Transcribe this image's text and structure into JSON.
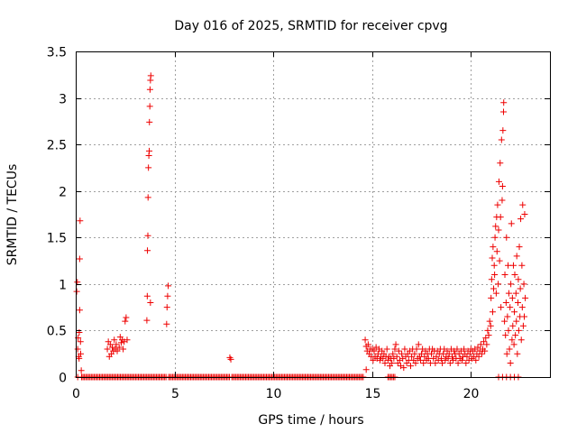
{
  "chart_data": {
    "type": "scatter",
    "title": "Day 016 of 2025, SRMTID for receiver cpvg",
    "xlabel": "GPS time / hours",
    "ylabel": "SRMTID / TECUs",
    "xlim": [
      0,
      24
    ],
    "ylim": [
      0,
      3.5
    ],
    "xticks": [
      0,
      5,
      10,
      15,
      20
    ],
    "xtick_labels": [
      "0",
      "5",
      "10",
      "15",
      "20"
    ],
    "yticks": [
      0,
      0.5,
      1,
      1.5,
      2,
      2.5,
      3,
      3.5
    ],
    "ytick_labels": [
      "0",
      "0.5",
      "1",
      "1.5",
      "2",
      "2.5",
      "3",
      "3.5"
    ],
    "grid": true,
    "marker": "+",
    "color": "#ee0000",
    "series": [
      {
        "name": "SRMTID",
        "points": [
          [
            0.05,
            0.92
          ],
          [
            0.08,
            1.02
          ],
          [
            0.1,
            0.3
          ],
          [
            0.12,
            0.42
          ],
          [
            0.15,
            0.22
          ],
          [
            0.17,
            0.2
          ],
          [
            0.18,
            0.48
          ],
          [
            0.2,
            0.72
          ],
          [
            0.2,
            1.27
          ],
          [
            0.22,
            1.68
          ],
          [
            0.24,
            0.38
          ],
          [
            0.25,
            0.25
          ],
          [
            0.28,
            0.07
          ],
          [
            0.1,
            0.0
          ],
          [
            0.3,
            0.0
          ],
          [
            1.6,
            0.3
          ],
          [
            1.65,
            0.38
          ],
          [
            1.7,
            0.22
          ],
          [
            1.75,
            0.35
          ],
          [
            1.8,
            0.25
          ],
          [
            1.85,
            0.32
          ],
          [
            1.9,
            0.28
          ],
          [
            1.95,
            0.4
          ],
          [
            2.0,
            0.3
          ],
          [
            2.05,
            0.35
          ],
          [
            2.1,
            0.28
          ],
          [
            2.2,
            0.32
          ],
          [
            2.25,
            0.43
          ],
          [
            2.3,
            0.37
          ],
          [
            2.35,
            0.4
          ],
          [
            2.4,
            0.3
          ],
          [
            2.45,
            0.38
          ],
          [
            2.5,
            0.6
          ],
          [
            2.55,
            0.64
          ],
          [
            2.6,
            0.4
          ],
          [
            3.6,
            0.61
          ],
          [
            3.62,
            0.87
          ],
          [
            3.63,
            1.36
          ],
          [
            3.65,
            1.52
          ],
          [
            3.66,
            1.93
          ],
          [
            3.68,
            2.25
          ],
          [
            3.7,
            2.38
          ],
          [
            3.72,
            2.43
          ],
          [
            3.73,
            2.74
          ],
          [
            3.75,
            2.91
          ],
          [
            3.76,
            3.09
          ],
          [
            3.78,
            3.19
          ],
          [
            3.8,
            3.24
          ],
          [
            3.78,
            0.8
          ],
          [
            4.6,
            0.57
          ],
          [
            4.62,
            0.75
          ],
          [
            4.65,
            0.87
          ],
          [
            4.68,
            0.98
          ],
          [
            7.8,
            0.21
          ],
          [
            7.85,
            0.19
          ],
          [
            14.7,
            0.08
          ],
          [
            14.65,
            0.4
          ],
          [
            14.7,
            0.33
          ],
          [
            14.75,
            0.28
          ],
          [
            14.8,
            0.35
          ],
          [
            14.85,
            0.25
          ],
          [
            14.9,
            0.3
          ],
          [
            14.95,
            0.22
          ],
          [
            15.0,
            0.3
          ],
          [
            15.05,
            0.18
          ],
          [
            15.1,
            0.28
          ],
          [
            15.15,
            0.22
          ],
          [
            15.2,
            0.32
          ],
          [
            15.25,
            0.2
          ],
          [
            15.3,
            0.25
          ],
          [
            15.35,
            0.3
          ],
          [
            15.4,
            0.18
          ],
          [
            15.45,
            0.22
          ],
          [
            15.5,
            0.28
          ],
          [
            15.55,
            0.2
          ],
          [
            15.6,
            0.25
          ],
          [
            15.65,
            0.15
          ],
          [
            15.7,
            0.22
          ],
          [
            15.75,
            0.3
          ],
          [
            15.8,
            0.18
          ],
          [
            15.85,
            0.22
          ],
          [
            15.9,
            0.12
          ],
          [
            15.95,
            0.2
          ],
          [
            16.0,
            0.15
          ],
          [
            16.05,
            0.25
          ],
          [
            16.1,
            0.2
          ],
          [
            16.15,
            0.3
          ],
          [
            16.2,
            0.35
          ],
          [
            16.25,
            0.22
          ],
          [
            16.3,
            0.15
          ],
          [
            16.35,
            0.28
          ],
          [
            16.4,
            0.18
          ],
          [
            16.45,
            0.12
          ],
          [
            16.5,
            0.25
          ],
          [
            16.55,
            0.2
          ],
          [
            16.6,
            0.1
          ],
          [
            16.65,
            0.3
          ],
          [
            16.7,
            0.22
          ],
          [
            16.75,
            0.15
          ],
          [
            16.8,
            0.25
          ],
          [
            16.85,
            0.18
          ],
          [
            16.9,
            0.28
          ],
          [
            16.95,
            0.12
          ],
          [
            17.0,
            0.22
          ],
          [
            17.05,
            0.3
          ],
          [
            17.1,
            0.18
          ],
          [
            17.15,
            0.25
          ],
          [
            17.2,
            0.15
          ],
          [
            17.25,
            0.3
          ],
          [
            17.3,
            0.2
          ],
          [
            17.35,
            0.35
          ],
          [
            17.4,
            0.22
          ],
          [
            17.45,
            0.18
          ],
          [
            17.5,
            0.25
          ],
          [
            17.55,
            0.3
          ],
          [
            17.6,
            0.15
          ],
          [
            17.65,
            0.22
          ],
          [
            17.7,
            0.28
          ],
          [
            17.75,
            0.18
          ],
          [
            17.8,
            0.25
          ],
          [
            17.85,
            0.2
          ],
          [
            17.9,
            0.3
          ],
          [
            17.95,
            0.15
          ],
          [
            18.0,
            0.25
          ],
          [
            18.05,
            0.3
          ],
          [
            18.1,
            0.2
          ],
          [
            18.15,
            0.28
          ],
          [
            18.2,
            0.15
          ],
          [
            18.25,
            0.22
          ],
          [
            18.3,
            0.28
          ],
          [
            18.35,
            0.18
          ],
          [
            18.4,
            0.25
          ],
          [
            18.45,
            0.3
          ],
          [
            18.5,
            0.2
          ],
          [
            18.55,
            0.15
          ],
          [
            18.6,
            0.25
          ],
          [
            18.65,
            0.3
          ],
          [
            18.7,
            0.18
          ],
          [
            18.75,
            0.22
          ],
          [
            18.8,
            0.28
          ],
          [
            18.85,
            0.2
          ],
          [
            18.9,
            0.25
          ],
          [
            18.95,
            0.15
          ],
          [
            19.0,
            0.3
          ],
          [
            19.05,
            0.22
          ],
          [
            19.1,
            0.18
          ],
          [
            19.15,
            0.28
          ],
          [
            19.2,
            0.25
          ],
          [
            19.25,
            0.2
          ],
          [
            19.3,
            0.3
          ],
          [
            19.35,
            0.15
          ],
          [
            19.4,
            0.25
          ],
          [
            19.45,
            0.2
          ],
          [
            19.5,
            0.28
          ],
          [
            19.55,
            0.18
          ],
          [
            19.6,
            0.22
          ],
          [
            19.65,
            0.3
          ],
          [
            19.7,
            0.25
          ],
          [
            19.75,
            0.15
          ],
          [
            19.8,
            0.22
          ],
          [
            19.85,
            0.28
          ],
          [
            19.9,
            0.18
          ],
          [
            19.95,
            0.25
          ],
          [
            20.0,
            0.3
          ],
          [
            20.05,
            0.2
          ],
          [
            20.1,
            0.28
          ],
          [
            20.15,
            0.22
          ],
          [
            20.2,
            0.3
          ],
          [
            20.25,
            0.18
          ],
          [
            20.3,
            0.25
          ],
          [
            20.35,
            0.32
          ],
          [
            20.4,
            0.22
          ],
          [
            20.45,
            0.28
          ],
          [
            20.5,
            0.35
          ],
          [
            20.55,
            0.25
          ],
          [
            20.6,
            0.3
          ],
          [
            20.65,
            0.38
          ],
          [
            20.7,
            0.28
          ],
          [
            20.75,
            0.42
          ],
          [
            20.8,
            0.35
          ],
          [
            20.85,
            0.5
          ],
          [
            20.9,
            0.45
          ],
          [
            20.95,
            0.6
          ],
          [
            21.0,
            0.55
          ],
          [
            21.02,
            0.85
          ],
          [
            21.05,
            1.05
          ],
          [
            21.08,
            1.28
          ],
          [
            21.1,
            0.7
          ],
          [
            21.12,
            1.4
          ],
          [
            21.15,
            0.95
          ],
          [
            21.18,
            1.2
          ],
          [
            21.2,
            1.1
          ],
          [
            21.22,
            1.5
          ],
          [
            21.25,
            1.62
          ],
          [
            21.28,
            0.9
          ],
          [
            21.3,
            1.72
          ],
          [
            21.32,
            1.35
          ],
          [
            21.35,
            1.85
          ],
          [
            21.38,
            1.0
          ],
          [
            21.4,
            1.58
          ],
          [
            21.42,
            2.1
          ],
          [
            21.45,
            1.25
          ],
          [
            21.48,
            2.3
          ],
          [
            21.5,
            1.72
          ],
          [
            21.52,
            0.75
          ],
          [
            21.55,
            2.55
          ],
          [
            21.58,
            1.9
          ],
          [
            21.6,
            2.05
          ],
          [
            21.62,
            2.65
          ],
          [
            21.65,
            2.85
          ],
          [
            21.66,
            2.95
          ],
          [
            21.7,
            0.6
          ],
          [
            21.72,
            1.1
          ],
          [
            21.75,
            0.45
          ],
          [
            21.78,
            0.8
          ],
          [
            21.8,
            1.5
          ],
          [
            21.82,
            0.25
          ],
          [
            21.85,
            0.65
          ],
          [
            21.88,
            1.2
          ],
          [
            21.9,
            0.5
          ],
          [
            21.92,
            0.9
          ],
          [
            21.95,
            0.3
          ],
          [
            21.98,
            0.75
          ],
          [
            22.0,
            0.15
          ],
          [
            22.02,
            1.0
          ],
          [
            22.05,
            1.65
          ],
          [
            22.08,
            0.4
          ],
          [
            22.1,
            0.85
          ],
          [
            22.12,
            0.55
          ],
          [
            22.15,
            1.2
          ],
          [
            22.18,
            0.35
          ],
          [
            22.2,
            0.7
          ],
          [
            22.22,
            1.1
          ],
          [
            22.25,
            0.45
          ],
          [
            22.28,
            0.9
          ],
          [
            22.3,
            0.6
          ],
          [
            22.32,
            1.3
          ],
          [
            22.35,
            0.25
          ],
          [
            22.38,
            0.8
          ],
          [
            22.4,
            1.05
          ],
          [
            22.42,
            0.5
          ],
          [
            22.45,
            1.4
          ],
          [
            22.48,
            0.65
          ],
          [
            22.5,
            0.95
          ],
          [
            22.52,
            1.7
          ],
          [
            22.55,
            0.4
          ],
          [
            22.58,
            1.2
          ],
          [
            22.6,
            0.75
          ],
          [
            22.62,
            1.85
          ],
          [
            22.65,
            0.55
          ],
          [
            22.68,
            1.0
          ],
          [
            22.7,
            0.65
          ],
          [
            22.72,
            1.75
          ],
          [
            22.75,
            0.85
          ],
          [
            21.4,
            0.0
          ],
          [
            21.6,
            0.0
          ],
          [
            21.8,
            0.0
          ],
          [
            22.0,
            0.0
          ],
          [
            22.2,
            0.0
          ],
          [
            22.4,
            0.0
          ]
        ],
        "zero_band_hours": [
          [
            0.3,
            4.6
          ],
          [
            4.7,
            7.8
          ],
          [
            7.9,
            14.6
          ],
          [
            15.8,
            16.2
          ]
        ]
      }
    ]
  }
}
